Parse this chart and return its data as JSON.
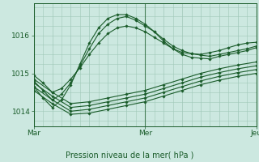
{
  "bg_color": "#cce8e0",
  "plot_bg_color": "#cce8e0",
  "grid_color": "#a0c8b8",
  "line_color": "#1a5c2a",
  "marker_color": "#1a5c2a",
  "xlabel": "Pression niveau de la mer( hPa )",
  "ylim": [
    1013.6,
    1016.85
  ],
  "xlim": [
    0,
    48
  ],
  "yticks": [
    1014,
    1015,
    1016
  ],
  "xtick_positions": [
    0,
    24,
    48
  ],
  "xtick_labels": [
    "Mar",
    "Mer",
    "Jeu"
  ],
  "vline_positions": [
    0,
    24,
    48
  ],
  "series": [
    {
      "x": [
        0,
        4,
        8,
        12,
        16,
        20,
        24,
        28,
        32,
        36,
        40,
        44,
        48
      ],
      "y": [
        1014.55,
        1014.2,
        1013.92,
        1013.95,
        1014.05,
        1014.15,
        1014.25,
        1014.4,
        1014.55,
        1014.7,
        1014.82,
        1014.92,
        1015.0
      ]
    },
    {
      "x": [
        0,
        4,
        8,
        12,
        16,
        20,
        24,
        28,
        32,
        36,
        40,
        44,
        48
      ],
      "y": [
        1014.65,
        1014.3,
        1014.0,
        1014.05,
        1014.15,
        1014.25,
        1014.35,
        1014.5,
        1014.65,
        1014.8,
        1014.92,
        1015.02,
        1015.1
      ]
    },
    {
      "x": [
        0,
        4,
        8,
        12,
        16,
        20,
        24,
        28,
        32,
        36,
        40,
        44,
        48
      ],
      "y": [
        1014.75,
        1014.4,
        1014.1,
        1014.15,
        1014.25,
        1014.35,
        1014.45,
        1014.6,
        1014.75,
        1014.9,
        1015.02,
        1015.12,
        1015.2
      ]
    },
    {
      "x": [
        0,
        4,
        8,
        12,
        16,
        20,
        24,
        28,
        32,
        36,
        40,
        44,
        48
      ],
      "y": [
        1014.85,
        1014.5,
        1014.2,
        1014.25,
        1014.35,
        1014.45,
        1014.55,
        1014.7,
        1014.85,
        1015.0,
        1015.12,
        1015.22,
        1015.3
      ]
    },
    {
      "x": [
        0,
        2,
        4,
        6,
        8,
        10,
        12,
        14,
        16,
        18,
        20,
        22,
        24,
        26,
        28,
        30,
        32,
        34,
        36,
        38,
        40,
        42,
        44,
        46,
        48
      ],
      "y": [
        1014.95,
        1014.75,
        1014.5,
        1014.6,
        1014.85,
        1015.15,
        1015.5,
        1015.8,
        1016.05,
        1016.2,
        1016.25,
        1016.2,
        1016.1,
        1015.95,
        1015.8,
        1015.65,
        1015.55,
        1015.52,
        1015.5,
        1015.55,
        1015.6,
        1015.68,
        1015.75,
        1015.8,
        1015.82
      ]
    },
    {
      "x": [
        0,
        2,
        4,
        6,
        8,
        10,
        12,
        14,
        16,
        18,
        20,
        22,
        24,
        26,
        28,
        30,
        32,
        34,
        36,
        38,
        40,
        42,
        44,
        46,
        48
      ],
      "y": [
        1014.8,
        1014.55,
        1014.3,
        1014.45,
        1014.75,
        1015.2,
        1015.65,
        1016.05,
        1016.3,
        1016.45,
        1016.5,
        1016.4,
        1016.25,
        1016.1,
        1015.9,
        1015.72,
        1015.6,
        1015.52,
        1015.48,
        1015.45,
        1015.5,
        1015.55,
        1015.6,
        1015.65,
        1015.72
      ]
    },
    {
      "x": [
        0,
        2,
        4,
        6,
        8,
        10,
        12,
        14,
        16,
        18,
        20,
        22,
        24,
        26,
        28,
        30,
        32,
        34,
        36,
        38,
        40,
        42,
        44,
        46,
        48
      ],
      "y": [
        1014.65,
        1014.35,
        1014.1,
        1014.3,
        1014.7,
        1015.25,
        1015.8,
        1016.2,
        1016.45,
        1016.55,
        1016.55,
        1016.45,
        1016.3,
        1016.1,
        1015.85,
        1015.65,
        1015.5,
        1015.42,
        1015.4,
        1015.38,
        1015.45,
        1015.5,
        1015.55,
        1015.6,
        1015.68
      ]
    }
  ]
}
